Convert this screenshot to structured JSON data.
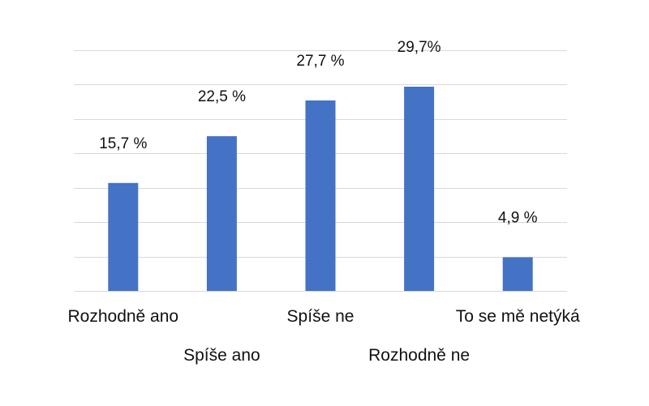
{
  "chart_data": {
    "type": "bar",
    "categories": [
      "Rozhodně ano",
      "Spíše ano",
      "Spíše ne",
      "Rozhodně ne",
      "To se mě netýká"
    ],
    "values": [
      15.7,
      22.5,
      27.7,
      29.7,
      4.9
    ],
    "data_labels": [
      "15,7 %",
      "22,5 %",
      "27,7 %",
      "29,7%",
      "4,9 %"
    ],
    "title": "",
    "xlabel": "",
    "ylabel": "",
    "ylim": [
      0,
      35
    ],
    "y_axis_visible": false,
    "grid": true,
    "legend": "none",
    "colors": {
      "bar": "#4472c4",
      "grid": "#d9d9d9",
      "text": "#111111"
    }
  }
}
